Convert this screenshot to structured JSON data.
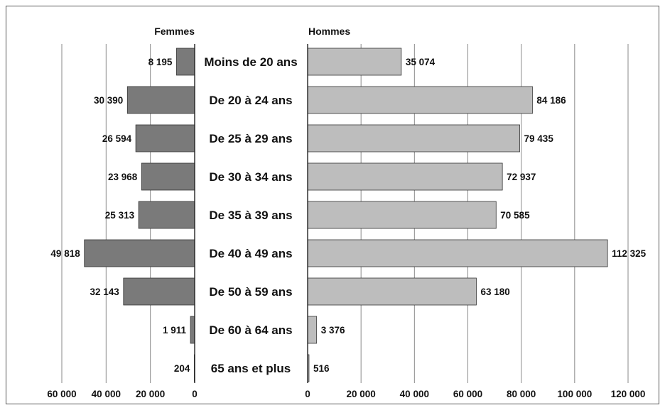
{
  "chart_data": {
    "type": "bar",
    "layout": "population-pyramid",
    "categories": [
      "Moins de 20 ans",
      "De 20 à 24  ans",
      "De 25 à 29 ans",
      "De 30 à 34 ans",
      "De 35 à 39 ans",
      "De 40 à 49 ans",
      "De 50 à 59 ans",
      "De 60 à 64 ans",
      "65 ans et plus"
    ],
    "series": [
      {
        "name": "Femmes",
        "side": "left",
        "color": "#7a7a7a",
        "values": [
          8195,
          30390,
          26594,
          23968,
          25313,
          49818,
          32143,
          1911,
          204
        ],
        "value_labels": [
          "8 195",
          "30 390",
          "26 594",
          "23 968",
          "25 313",
          "49 818",
          "32 143",
          "1 911",
          "204"
        ]
      },
      {
        "name": "Hommes",
        "side": "right",
        "color": "#bdbdbd",
        "values": [
          35074,
          84186,
          79435,
          72937,
          70585,
          112325,
          63180,
          3376,
          516
        ],
        "value_labels": [
          "35 074",
          "84 186",
          "79 435",
          "72 937",
          "70 585",
          "112 325",
          "63 180",
          "3 376",
          "516"
        ]
      }
    ],
    "left_axis": {
      "ticks": [
        60000,
        40000,
        20000,
        0
      ],
      "tick_labels": [
        "60 000",
        "40 000",
        "20 000",
        "0"
      ],
      "range": [
        0,
        60000
      ]
    },
    "right_axis": {
      "ticks": [
        0,
        20000,
        40000,
        60000,
        80000,
        100000,
        120000
      ],
      "tick_labels": [
        "0",
        "20 000",
        "40 000",
        "60 000",
        "80 000",
        "100 000",
        "120 000"
      ],
      "range": [
        0,
        120000
      ]
    },
    "grid": true,
    "title": "",
    "xlabel": "",
    "ylabel": ""
  }
}
